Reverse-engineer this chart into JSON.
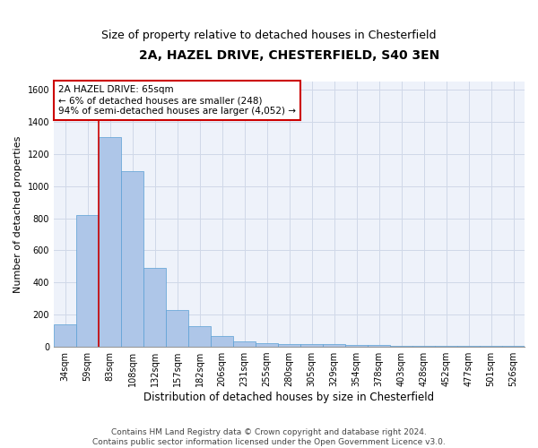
{
  "title1": "2A, HAZEL DRIVE, CHESTERFIELD, S40 3EN",
  "title2": "Size of property relative to detached houses in Chesterfield",
  "xlabel": "Distribution of detached houses by size in Chesterfield",
  "ylabel": "Number of detached properties",
  "categories": [
    "34sqm",
    "59sqm",
    "83sqm",
    "108sqm",
    "132sqm",
    "157sqm",
    "182sqm",
    "206sqm",
    "231sqm",
    "255sqm",
    "280sqm",
    "305sqm",
    "329sqm",
    "354sqm",
    "378sqm",
    "403sqm",
    "428sqm",
    "452sqm",
    "477sqm",
    "501sqm",
    "526sqm"
  ],
  "values": [
    140,
    820,
    1305,
    1090,
    490,
    230,
    130,
    65,
    35,
    25,
    18,
    15,
    15,
    12,
    10,
    8,
    8,
    8,
    8,
    8,
    8
  ],
  "bar_color": "#aec6e8",
  "bar_edge_color": "#5a9fd4",
  "annotation_text": "2A HAZEL DRIVE: 65sqm\n← 6% of detached houses are smaller (248)\n94% of semi-detached houses are larger (4,052) →",
  "annotation_box_color": "#ffffff",
  "annotation_box_edge_color": "#cc0000",
  "vline_color": "#cc0000",
  "vline_x_bar_index": 1.5,
  "ylim": [
    0,
    1650
  ],
  "yticks": [
    0,
    200,
    400,
    600,
    800,
    1000,
    1200,
    1400,
    1600
  ],
  "grid_color": "#d0d8e8",
  "background_color": "#eef2fa",
  "footer_text": "Contains HM Land Registry data © Crown copyright and database right 2024.\nContains public sector information licensed under the Open Government Licence v3.0.",
  "title1_fontsize": 10,
  "title2_fontsize": 9,
  "xlabel_fontsize": 8.5,
  "ylabel_fontsize": 8,
  "tick_fontsize": 7,
  "annotation_fontsize": 7.5,
  "footer_fontsize": 6.5
}
